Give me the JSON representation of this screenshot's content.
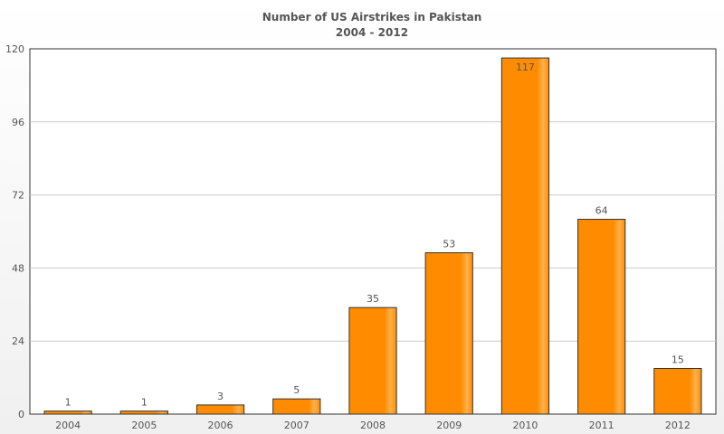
{
  "chart_data": {
    "type": "bar",
    "title": "Number of US Airstrikes in Pakistan",
    "subtitle": "2004 - 2012",
    "categories": [
      "2004",
      "2005",
      "2006",
      "2007",
      "2008",
      "2009",
      "2010",
      "2011",
      "2012"
    ],
    "values": [
      1,
      1,
      3,
      5,
      35,
      53,
      117,
      64,
      15
    ],
    "ylim": [
      0,
      120
    ],
    "yticks": [
      0,
      24,
      48,
      72,
      96,
      120
    ],
    "grid": true,
    "legend": "none",
    "colors": {
      "bar": "#ff8c00",
      "bar_highlight": "#ffb04d",
      "bar_border": "#333333",
      "grid": "#cccccc",
      "plot_background": "#ffffff"
    }
  }
}
